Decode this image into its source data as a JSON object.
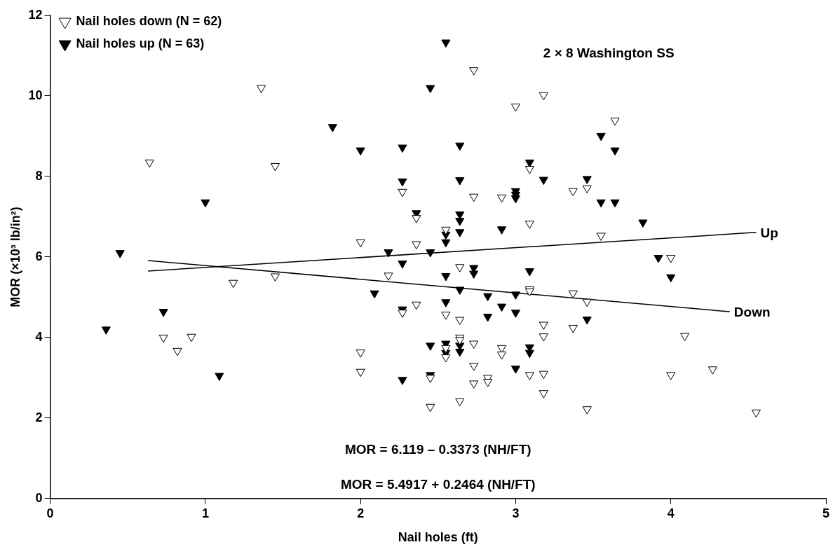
{
  "chart_data": {
    "type": "scatter",
    "xlabel": "Nail holes (ft)",
    "ylabel": "MOR (×10³ lb/in²)",
    "annotations": [
      "2 × 8 Washington SS",
      "MOR = 6.119 – 0.3373 (NH/FT)",
      "MOR = 5.4917 + 0.2464 (NH/FT)"
    ],
    "xlim": [
      0,
      5
    ],
    "xticks": [
      0,
      1,
      2,
      3,
      4,
      5
    ],
    "ylim": [
      0,
      12
    ],
    "yticks": [
      0,
      2,
      4,
      6,
      8,
      10,
      12
    ],
    "grid": false,
    "legend": "top left",
    "marker": "triangle",
    "series": [
      {
        "name": "Nail holes down (N = 62)",
        "color": "#ffffff",
        "x": [
          0.64,
          0.73,
          0.82,
          0.91,
          1.18,
          1.36,
          1.45,
          1.45,
          2.0,
          2.0,
          2.0,
          2.18,
          2.27,
          2.27,
          2.36,
          2.36,
          2.36,
          2.45,
          2.45,
          2.55,
          2.55,
          2.55,
          2.55,
          2.64,
          2.64,
          2.64,
          2.64,
          2.64,
          2.73,
          2.73,
          2.73,
          2.73,
          2.73,
          2.82,
          2.82,
          2.91,
          2.91,
          2.91,
          3.0,
          3.09,
          3.09,
          3.09,
          3.09,
          3.09,
          3.18,
          3.18,
          3.18,
          3.18,
          3.18,
          3.37,
          3.37,
          3.37,
          3.46,
          3.46,
          3.46,
          3.55,
          3.64,
          4.0,
          4.0,
          4.09,
          4.27,
          4.55
        ],
        "values": [
          8.35,
          4.0,
          3.67,
          4.02,
          5.36,
          10.2,
          8.26,
          5.52,
          6.37,
          3.63,
          3.15,
          5.54,
          7.62,
          4.62,
          6.97,
          6.32,
          4.82,
          3.0,
          2.28,
          6.68,
          4.57,
          3.74,
          3.51,
          5.75,
          4.44,
          4.0,
          3.94,
          2.42,
          10.64,
          7.5,
          3.85,
          3.3,
          2.86,
          3.0,
          2.9,
          7.48,
          3.74,
          3.58,
          9.74,
          8.19,
          6.83,
          5.2,
          5.15,
          3.07,
          10.02,
          4.32,
          4.03,
          3.1,
          2.62,
          7.64,
          5.1,
          4.24,
          7.71,
          4.89,
          2.22,
          6.53,
          9.39,
          5.98,
          3.07,
          4.04,
          3.21,
          2.14
        ]
      },
      {
        "name": "Nail holes up (N = 63)",
        "color": "#000000",
        "x": [
          0.36,
          0.45,
          0.73,
          1.0,
          1.09,
          1.82,
          2.0,
          2.09,
          2.18,
          2.27,
          2.27,
          2.27,
          2.27,
          2.27,
          2.36,
          2.45,
          2.45,
          2.45,
          2.45,
          2.55,
          2.55,
          2.55,
          2.55,
          2.55,
          2.55,
          2.55,
          2.64,
          2.64,
          2.64,
          2.64,
          2.64,
          2.64,
          2.64,
          2.64,
          2.73,
          2.73,
          2.82,
          2.82,
          2.91,
          2.91,
          3.0,
          3.0,
          3.0,
          3.0,
          3.0,
          3.0,
          3.09,
          3.09,
          3.09,
          3.09,
          3.18,
          3.46,
          3.46,
          3.55,
          3.55,
          3.64,
          3.64,
          3.82,
          3.92,
          4.0
        ],
        "values": [
          4.2,
          6.1,
          4.64,
          7.36,
          3.05,
          9.23,
          8.65,
          5.1,
          6.12,
          8.72,
          7.88,
          5.84,
          4.7,
          2.95,
          7.09,
          10.2,
          6.12,
          3.8,
          3.07,
          11.33,
          6.56,
          6.37,
          5.53,
          4.88,
          3.85,
          3.62,
          8.77,
          7.91,
          7.06,
          6.9,
          6.62,
          5.19,
          3.8,
          3.65,
          5.73,
          5.59,
          5.03,
          4.52,
          6.69,
          4.77,
          7.64,
          7.55,
          7.46,
          5.07,
          4.62,
          3.23,
          8.35,
          5.65,
          3.76,
          3.62,
          7.92,
          7.94,
          4.45,
          9.01,
          7.36,
          8.65,
          7.36,
          6.86,
          5.98,
          5.5
        ]
      },
      {
        "name": "Up",
        "type": "line",
        "color": "#000000",
        "marker": "none",
        "x": [
          0.63,
          4.55
        ],
        "values": [
          5.65,
          6.61
        ]
      },
      {
        "name": "Down",
        "type": "line",
        "color": "#000000",
        "marker": "none",
        "x": [
          0.63,
          4.38
        ],
        "values": [
          5.91,
          4.64
        ]
      }
    ]
  }
}
